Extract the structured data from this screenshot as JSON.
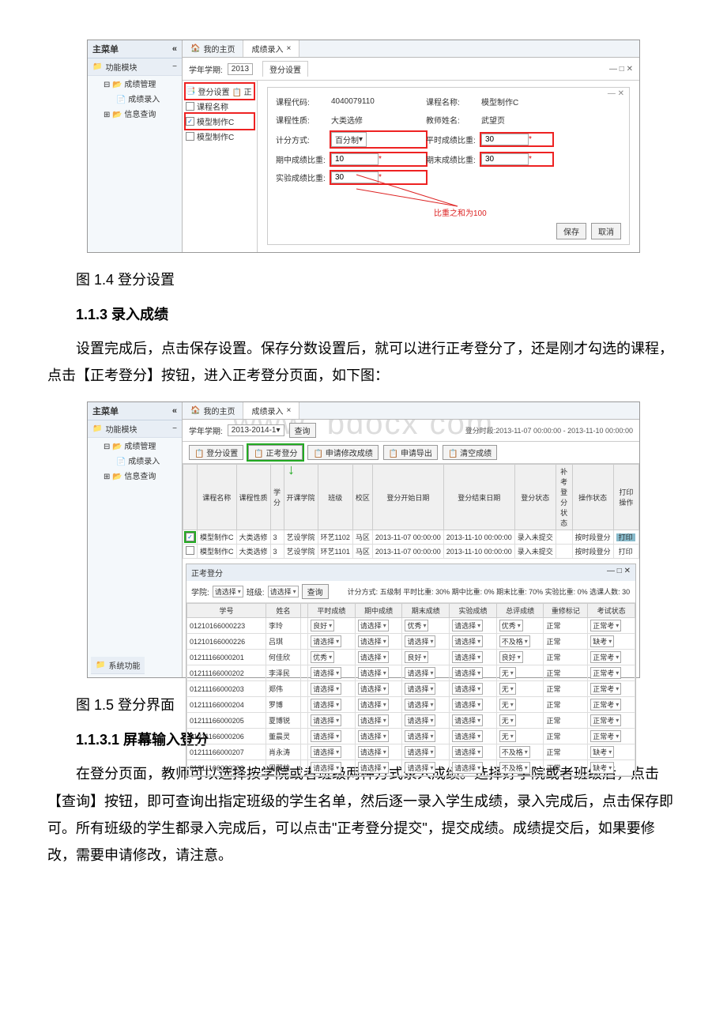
{
  "screenshot1": {
    "sidebar_title": "主菜单",
    "sidebar_collapse": "«",
    "module_title": "功能模块",
    "module_minus": "−",
    "tree_root1": "成绩管理",
    "tree_leaf1": "成绩录入",
    "tree_root2": "信息查询",
    "tab_home": "我的主页",
    "tab_entry": "成绩录入",
    "tab_close": "×",
    "term_label": "学年学期:",
    "term_value": "2013",
    "panel_title": "登分设置",
    "left_btn": "登分设置",
    "chk_course_name": "课程名称",
    "chk_model_c": "模型制作C",
    "chk_model_c2": "模型制作C",
    "form": {
      "code_label": "课程代码:",
      "code_value": "4040079110",
      "name_label": "课程名称:",
      "name_value": "模型制作C",
      "nature_label": "课程性质:",
      "nature_value": "大类选修",
      "teacher_label": "教师姓名:",
      "teacher_value": "武望页",
      "method_label": "计分方式:",
      "method_value": "百分制",
      "usual_label": "平时成绩比重:",
      "usual_value": "30",
      "mid_label": "期中成绩比重:",
      "mid_value": "10",
      "final_label": "期末成绩比重:",
      "final_value": "30",
      "exp_label": "实验成绩比重:",
      "exp_value": "30",
      "note": "比重之和为100"
    },
    "save_btn": "保存",
    "cancel_btn": "取消"
  },
  "caption1": "图 1.4 登分设置",
  "heading113": "1.1.3 录入成绩",
  "para1": "设置完成后，点击保存设置。保存分数设置后，就可以进行正考登分了，还是刚才勾选的课程，点击【正考登分】按钮，进入正考登分页面，如下图：",
  "screenshot2": {
    "watermark1": "www",
    "watermark2": "bdocx com",
    "sidebar_title": "主菜单",
    "module_title": "功能模块",
    "tree_root1": "成绩管理",
    "tree_leaf1": "成绩录入",
    "tree_root2": "信息查询",
    "sys_func": "系统功能",
    "tab_home": "我的主页",
    "tab_entry": "成绩录入",
    "term_label": "学年学期:",
    "term_value": "2013-2014-1",
    "query_btn": "查询",
    "time_range": "登分时段:2013-11-07 00:00:00 - 2013-11-10 00:00:00",
    "btn_settings": "登分设置",
    "btn_zhengkao": "正考登分",
    "btn_apply_mod": "申请修改成绩",
    "btn_apply_exp": "申请导出",
    "btn_clear": "清空成绩",
    "tbl_hdr": [
      "",
      "课程名称",
      "课程性质",
      "学分",
      "开课学院",
      "班级",
      "校区",
      "登分开始日期",
      "登分结束日期",
      "登分状态",
      "补考登分状态",
      "操作状态",
      "打印操作"
    ],
    "row1": [
      "✓",
      "模型制作C",
      "大类选修",
      "3",
      "艺设学院",
      "环艺1102",
      "马区",
      "2013-11-07 00:00:00",
      "2013-11-10 00:00:00",
      "录入未提交",
      "",
      "按时段登分",
      "打印"
    ],
    "row2": [
      "",
      "模型制作C",
      "大类选修",
      "3",
      "艺设学院",
      "环艺1101",
      "马区",
      "2013-11-07 00:00:00",
      "2013-11-10 00:00:00",
      "录入未提交",
      "",
      "按时段登分",
      "打印"
    ],
    "sub_title": "正考登分",
    "filter_college": "学院:",
    "filter_class": "班级:",
    "sel_placeholder": "请选择",
    "query2": "查询",
    "score_info": "计分方式: 五级制  平时比重: 30%  期中比重: 0%  期末比重: 70%  实验比重: 0%  选课人数: 30",
    "hdr2": [
      "学号",
      "姓名",
      "",
      "平时成绩",
      "期中成绩",
      "期末成绩",
      "实验成绩",
      "总评成绩",
      "重修标记",
      "考试状态"
    ],
    "students": [
      {
        "id": "01210166000223",
        "name": "李玲",
        "p": "良好",
        "m": "请选择",
        "f": "优秀",
        "e": "请选择",
        "t": "优秀",
        "r": "正常",
        "s": "正常考"
      },
      {
        "id": "01210166000226",
        "name": "吕琪",
        "p": "请选择",
        "m": "请选择",
        "f": "请选择",
        "e": "请选择",
        "t": "不及格",
        "r": "正常",
        "s": "缺考"
      },
      {
        "id": "01211166000201",
        "name": "何佳欣",
        "p": "优秀",
        "m": "请选择",
        "f": "良好",
        "e": "请选择",
        "t": "良好",
        "r": "正常",
        "s": "正常考"
      },
      {
        "id": "01211166000202",
        "name": "李泽民",
        "p": "请选择",
        "m": "请选择",
        "f": "请选择",
        "e": "请选择",
        "t": "无",
        "r": "正常",
        "s": "正常考"
      },
      {
        "id": "01211166000203",
        "name": "郑伟",
        "p": "请选择",
        "m": "请选择",
        "f": "请选择",
        "e": "请选择",
        "t": "无",
        "r": "正常",
        "s": "正常考"
      },
      {
        "id": "01211166000204",
        "name": "罗博",
        "p": "请选择",
        "m": "请选择",
        "f": "请选择",
        "e": "请选择",
        "t": "无",
        "r": "正常",
        "s": "正常考"
      },
      {
        "id": "01211166000205",
        "name": "夏博锐",
        "p": "请选择",
        "m": "请选择",
        "f": "请选择",
        "e": "请选择",
        "t": "无",
        "r": "正常",
        "s": "正常考"
      },
      {
        "id": "01211166000206",
        "name": "董晨灵",
        "p": "请选择",
        "m": "请选择",
        "f": "请选择",
        "e": "请选择",
        "t": "无",
        "r": "正常",
        "s": "正常考"
      },
      {
        "id": "01211166000207",
        "name": "肖永涛",
        "p": "请选择",
        "m": "请选择",
        "f": "请选择",
        "e": "请选择",
        "t": "不及格",
        "r": "正常",
        "s": "缺考"
      },
      {
        "id": "01211166000208",
        "name": "周翼雄",
        "p": "请选择",
        "m": "请选择",
        "f": "请选择",
        "e": "请选择",
        "t": "不及格",
        "r": "正常",
        "s": "缺考"
      }
    ]
  },
  "caption2": "图 1.5 登分界面",
  "heading1131": "1.1.3.1 屏幕输入登分",
  "para2": "在登分页面，教师可以选择按学院或者班级两种方式录入成绩。选择好学院或者班级后，点击【查询】按钮，即可查询出指定班级的学生名单，然后逐一录入学生成绩，录入完成后，点击保存即可。所有班级的学生都录入完成后，可以点击\"正考登分提交\"，提交成绩。成绩提交后，如果要修改，需要申请修改，请注意。"
}
